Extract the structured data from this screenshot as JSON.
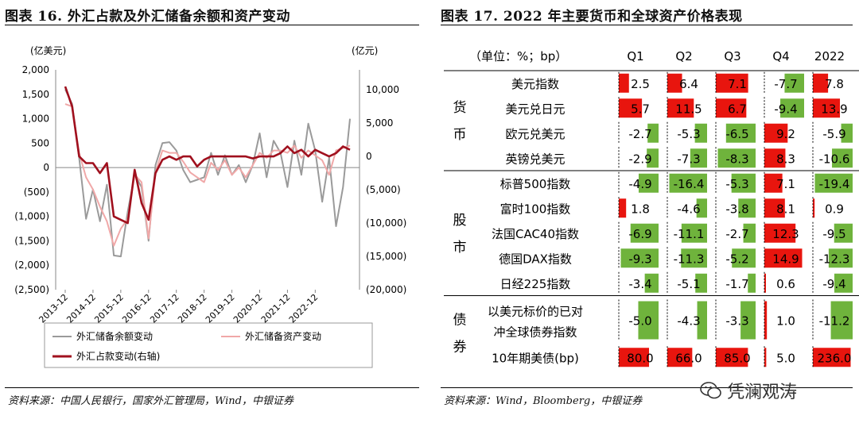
{
  "left": {
    "title": "图表 16. 外汇占款及外汇储备余额和资产变动",
    "source": "资料来源：中国人民银行，国家外汇管理局，Wind，中银证券",
    "chart_data": {
      "type": "line",
      "left_unit": "(亿美元)",
      "right_unit": "(亿元)",
      "y_left_ticks": [
        "2,000",
        "1,500",
        "1,000",
        "500",
        "0",
        "(500)",
        "(1,000)",
        "(1,500)",
        "(2,000)",
        "(2,500)"
      ],
      "y_left_values": [
        2000,
        1500,
        1000,
        500,
        0,
        -500,
        -1000,
        -1500,
        -2000,
        -2500
      ],
      "y_right_ticks": [
        "10,000",
        "5,000",
        "0",
        "(5,000)",
        "(10,000)",
        "(15,000)",
        "(20,000)"
      ],
      "y_right_values": [
        10000,
        5000,
        0,
        -5000,
        -10000,
        -15000,
        -20000
      ],
      "ylim_left": [
        -2500,
        2000
      ],
      "ylim_right": [
        -20000,
        13000
      ],
      "x_tick_labels": [
        "2013-12",
        "2014-12",
        "2015-12",
        "2016-12",
        "2017-12",
        "2018-12",
        "2019-12",
        "2020-12",
        "2021-12",
        "2022-12"
      ],
      "x_start_month_index": 0,
      "series": [
        {
          "name": "外汇储备余额变动",
          "axis": "left",
          "color": "#9a9a9a",
          "values": [
            1600,
            1300,
            200,
            -1050,
            -450,
            -1100,
            -350,
            -1800,
            -1820,
            -900,
            -150,
            -400,
            -1500,
            50,
            500,
            520,
            350,
            -50,
            -300,
            -250,
            -200,
            300,
            -150,
            250,
            -150,
            50,
            -300,
            50,
            700,
            -200,
            550,
            300,
            -400,
            550,
            -150,
            900,
            350,
            -700,
            200,
            -1200,
            -400,
            1000
          ]
        },
        {
          "name": "外汇储备资产变动",
          "axis": "left",
          "color": "#f0a8a8",
          "values": [
            1300,
            1250,
            300,
            -200,
            -450,
            -800,
            -1100,
            -1600,
            -1250,
            -1050,
            -150,
            -300,
            -1450,
            -100,
            350,
            300,
            300,
            120,
            -100,
            -200,
            -300,
            100,
            -50,
            150,
            -150,
            0,
            -200,
            50,
            300,
            200,
            350,
            350,
            300,
            450,
            200,
            350,
            250,
            150,
            -150,
            350,
            400,
            450
          ]
        },
        {
          "name": "外汇占款变动(右轴)",
          "axis": "right",
          "color": "#a0101e",
          "values": [
            10500,
            7500,
            0,
            -1000,
            -1000,
            -2500,
            -1000,
            -9000,
            -9500,
            -10000,
            -2000,
            -7000,
            -9500,
            -2500,
            -500,
            0,
            -500,
            0,
            0,
            -1500,
            -500,
            0,
            0,
            0,
            0,
            0,
            0,
            -300,
            0,
            0,
            0,
            500,
            1500,
            500,
            1000,
            0,
            1000,
            500,
            0,
            500,
            1500,
            1000
          ]
        }
      ]
    }
  },
  "right": {
    "title": "图表 17. 2022 年主要货币和全球资产价格表现",
    "source": "资料来源：Wind，Bloomberg，中银证券",
    "header": {
      "unit": "（单位：%；bp）",
      "cols": [
        "Q1",
        "Q2",
        "Q3",
        "Q4",
        "2022"
      ]
    },
    "groups": [
      {
        "name": "货币",
        "rows": [
          {
            "label": "美元指数",
            "values": [
              2.5,
              6.4,
              7.1,
              -7.7,
              7.8
            ],
            "texts": [
              "2.5",
              "6.4",
              "7.1",
              "-7.7",
              "7.8"
            ]
          },
          {
            "label": "美元兑日元",
            "values": [
              5.7,
              11.5,
              6.7,
              -9.4,
              13.9
            ],
            "texts": [
              "5.7",
              "11.5",
              "6.7",
              "-9.4",
              "13.9"
            ]
          },
          {
            "label": "欧元兑美元",
            "values": [
              -2.7,
              -5.3,
              -6.5,
              9.2,
              -5.9
            ],
            "texts": [
              "-2.7",
              "-5.3",
              "-6.5",
              "9.2",
              "-5.9"
            ]
          },
          {
            "label": "英镑兑美元",
            "values": [
              -2.9,
              -7.3,
              -8.3,
              8.3,
              -10.6
            ],
            "texts": [
              "-2.9",
              "-7.3",
              "-8.3",
              "8.3",
              "-10.6"
            ]
          }
        ]
      },
      {
        "name": "股市",
        "rows": [
          {
            "label": "标普500指数",
            "values": [
              -4.9,
              -16.4,
              -5.3,
              7.1,
              -19.4
            ],
            "texts": [
              "-4.9",
              "-16.4",
              "-5.3",
              "7.1",
              "-19.4"
            ]
          },
          {
            "label": "富时100指数",
            "values": [
              1.8,
              -4.6,
              -3.8,
              8.1,
              0.9
            ],
            "texts": [
              "1.8",
              "-4.6",
              "-3.8",
              "8.1",
              "0.9"
            ]
          },
          {
            "label": "法国CAC40指数",
            "values": [
              -6.9,
              -11.1,
              -2.7,
              12.3,
              -9.5
            ],
            "texts": [
              "-6.9",
              "-11.1",
              "-2.7",
              "12.3",
              "-9.5"
            ]
          },
          {
            "label": "德国DAX指数",
            "values": [
              -9.3,
              -11.3,
              -5.2,
              14.9,
              -12.3
            ],
            "texts": [
              "-9.3",
              "-11.3",
              "-5.2",
              "14.9",
              "-12.3"
            ]
          },
          {
            "label": "日经225指数",
            "values": [
              -3.4,
              -5.1,
              -1.7,
              0.6,
              -9.4
            ],
            "texts": [
              "-3.4",
              "-5.1",
              "-1.7",
              "0.6",
              "-9.4"
            ]
          }
        ]
      },
      {
        "name": "债券",
        "rows": [
          {
            "label": "以美元标价的已对冲全球债券指数",
            "label_lines": [
              "以美元标价的已对",
              "冲全球债券指数"
            ],
            "values": [
              -5.0,
              -4.3,
              -3.3,
              1.0,
              -11.2
            ],
            "texts": [
              "-5.0",
              "-4.3",
              "-3.3",
              "1.0",
              "-11.2"
            ],
            "tall": true
          },
          {
            "label": "10年期美债(bp)",
            "values": [
              80.0,
              66.0,
              85.0,
              5.0,
              236.0
            ],
            "texts": [
              "80.0",
              "66.0",
              "85.0",
              "5.0",
              "236.0"
            ],
            "bp": true
          }
        ]
      }
    ],
    "colors": {
      "positive": "#e8150e",
      "negative": "#6fb33c"
    }
  },
  "watermark": "凭澜观涛"
}
